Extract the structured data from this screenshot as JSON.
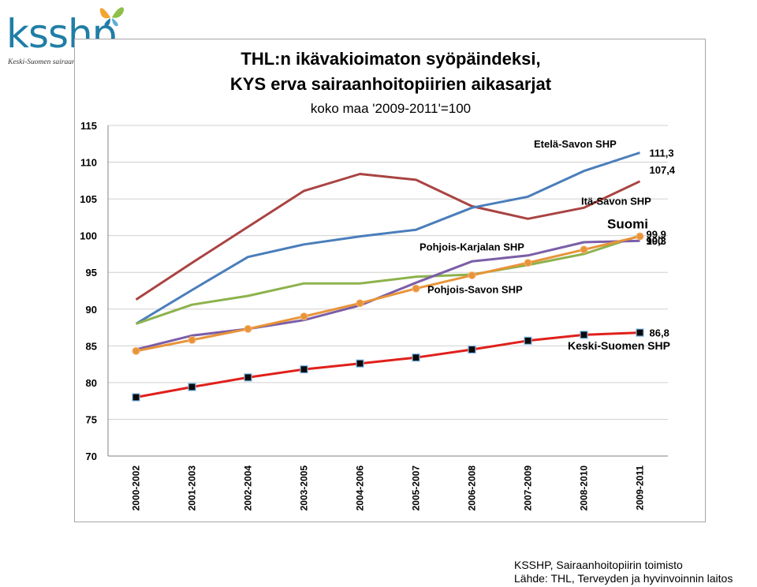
{
  "logo": {
    "text": "ksshp",
    "subtitle": "Keski-Suomen sairaanhoitopiiri",
    "icon": "butterfly-icon"
  },
  "footer": {
    "line1": "KSSHP, Sairaanhoitopiirin toimisto",
    "line2": "Lähde:  THL, Terveyden ja hyvinvoinnin laitos"
  },
  "chart_data": {
    "type": "line",
    "title": "THL:n ikävakioimaton syöpäindeksi,",
    "subtitle": "KYS erva sairaanhoitopiirien aikasarjat",
    "note": "koko maa '2009-2011'=100",
    "xlabel": "",
    "ylabel": "",
    "ylim": [
      70,
      115
    ],
    "yticks": [
      70,
      75,
      80,
      85,
      90,
      95,
      100,
      105,
      110,
      115
    ],
    "grid": true,
    "legend": "none",
    "categories": [
      "2000-2002",
      "2001-2003",
      "2002-2004",
      "2003-2005",
      "2004-2006",
      "2005-2007",
      "2006-2008",
      "2007-2009",
      "2008-2010",
      "2009-2011"
    ],
    "series": [
      {
        "name": "Itä-Savon SHP",
        "color": "#a94442",
        "marker": "none",
        "end_label": "107,4",
        "values": [
          91.3,
          96.3,
          101.2,
          106.1,
          108.4,
          107.6,
          104.0,
          102.3,
          103.8,
          107.4
        ]
      },
      {
        "name": "Etelä-Savon SHP",
        "color": "#4a7ebb",
        "marker": "none",
        "end_label": "111,3",
        "values": [
          88.0,
          92.6,
          97.1,
          98.8,
          99.9,
          100.8,
          103.8,
          105.3,
          108.8,
          111.3
        ]
      },
      {
        "name": "Pohjois-Savon SHP",
        "color": "#8db24d",
        "marker": "none",
        "end_label": "",
        "values": [
          88.0,
          90.6,
          91.8,
          93.5,
          93.5,
          94.4,
          94.7,
          96.0,
          97.5,
          100.0
        ]
      },
      {
        "name": "Pohjois-Karjalan SHP",
        "color": "#7b5ea7",
        "marker": "none",
        "end_label": "99,3",
        "values": [
          84.5,
          86.4,
          87.3,
          88.5,
          90.5,
          93.6,
          96.5,
          97.3,
          99.1,
          99.3
        ]
      },
      {
        "name": "Suomi",
        "color": "#e8943a",
        "marker": "circle",
        "end_label": "99,9",
        "values": [
          84.3,
          85.8,
          87.3,
          89.0,
          90.8,
          92.8,
          94.6,
          96.3,
          98.1,
          99.9
        ]
      },
      {
        "name": "Keski-Suomen SHP",
        "color": "#e0201b",
        "marker": "square",
        "end_label": "86,8",
        "values": [
          78.0,
          79.4,
          80.7,
          81.8,
          82.6,
          83.4,
          84.5,
          85.7,
          86.5,
          86.8
        ]
      }
    ],
    "annotations": [
      {
        "text": "Etelä-Savon SHP"
      },
      {
        "text": "Itä-Savon SHP"
      },
      {
        "text": "Suomi"
      },
      {
        "text": "Pohjois-Karjalan SHP"
      },
      {
        "text": "Pohjois-Savon SHP"
      },
      {
        "text": "Keski-Suomen SHP"
      },
      {
        "text": "100"
      }
    ]
  }
}
